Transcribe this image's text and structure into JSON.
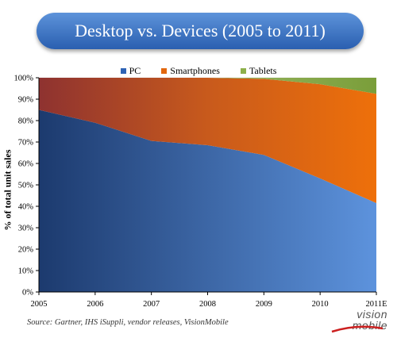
{
  "chart_data": {
    "type": "area",
    "stacked": true,
    "percent": true,
    "title": "Desktop vs. Devices (2005 to 2011)",
    "ylabel": "% of total unit sales",
    "xlabel": "",
    "categories": [
      "2005",
      "2006",
      "2007",
      "2008",
      "2009",
      "2010",
      "2011E"
    ],
    "y_ticks": [
      "0%",
      "10%",
      "20%",
      "30%",
      "40%",
      "50%",
      "60%",
      "70%",
      "80%",
      "90%",
      "100%"
    ],
    "ylim": [
      0,
      100
    ],
    "series": [
      {
        "name": "PC",
        "values": [
          85,
          79,
          70.5,
          68.5,
          64,
          53,
          41.5
        ],
        "color": "#2e63b5"
      },
      {
        "name": "Smartphones",
        "values": [
          15,
          21,
          29.5,
          31.5,
          35.5,
          44,
          51
        ],
        "color": "#e2670e"
      },
      {
        "name": "Tablets",
        "values": [
          0,
          0,
          0,
          0,
          0.5,
          3,
          7.5
        ],
        "color": "#7a9e3a"
      }
    ],
    "legend_position": "top",
    "grid": true
  },
  "source_note": "Source: Gartner, IHS iSuppli, vendor releases, VisionMobile",
  "logo": {
    "line1": "vision",
    "line2": "mobile"
  }
}
